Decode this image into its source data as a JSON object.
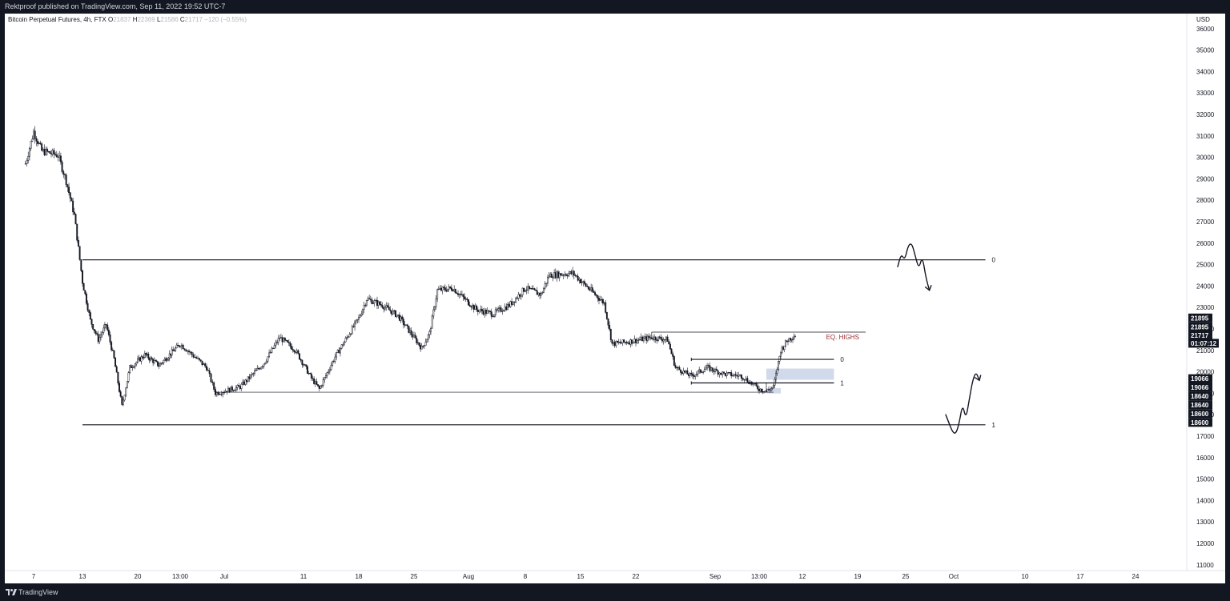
{
  "header": {
    "published": "Rektproof published on TradingView.com, Sep 11, 2022 19:52 UTC-7"
  },
  "legend": {
    "symbol": "Bitcoin Perpetual Futures, 4h, FTX",
    "o_label": "O",
    "o_value": "21837",
    "h_label": "H",
    "h_value": "22369",
    "l_label": "L",
    "l_value": "21586",
    "c_label": "C",
    "c_value": "21717",
    "change": "−120 (−0.55%)"
  },
  "footer": {
    "brand": "TradingView"
  },
  "chart_data": {
    "type": "candlestick",
    "currency": "USD",
    "timeframe": "4h",
    "ylim": [
      10600,
      36400
    ],
    "y_ticks": [
      11000,
      12000,
      13000,
      14000,
      15000,
      16000,
      17000,
      18000,
      19000,
      20000,
      21000,
      22000,
      23000,
      24000,
      25000,
      26000,
      27000,
      28000,
      29000,
      30000,
      31000,
      32000,
      33000,
      34000,
      35000,
      36000
    ],
    "x_ticks": [
      "7",
      "13",
      "20",
      "13:00",
      "Jul",
      "11",
      "18",
      "25",
      "Aug",
      "8",
      "15",
      "22",
      "Sep",
      "13:00",
      "12",
      "19",
      "25",
      "Oct",
      "10",
      "17",
      "24"
    ],
    "key_points": [
      {
        "date": "Jun 6",
        "price": 29700
      },
      {
        "date": "Jun 7",
        "price": 31200
      },
      {
        "date": "Jun 8",
        "price": 30300
      },
      {
        "date": "Jun 10",
        "price": 30100
      },
      {
        "date": "Jun 11",
        "price": 28900
      },
      {
        "date": "Jun 12",
        "price": 27300
      },
      {
        "date": "Jun 13",
        "price": 24200
      },
      {
        "date": "Jun 14",
        "price": 22400
      },
      {
        "date": "Jun 15",
        "price": 21500
      },
      {
        "date": "Jun 16",
        "price": 22200
      },
      {
        "date": "Jun 17",
        "price": 20600
      },
      {
        "date": "Jun 18",
        "price": 18400
      },
      {
        "date": "Jun 19",
        "price": 20200
      },
      {
        "date": "Jun 21",
        "price": 20800
      },
      {
        "date": "Jun 23",
        "price": 20300
      },
      {
        "date": "Jun 26",
        "price": 21300
      },
      {
        "date": "Jun 29",
        "price": 20200
      },
      {
        "date": "Jun 30",
        "price": 19000
      },
      {
        "date": "Jul 3",
        "price": 19300
      },
      {
        "date": "Jul 6",
        "price": 20400
      },
      {
        "date": "Jul 8",
        "price": 21600
      },
      {
        "date": "Jul 10",
        "price": 21000
      },
      {
        "date": "Jul 12",
        "price": 19700
      },
      {
        "date": "Jul 13",
        "price": 19200
      },
      {
        "date": "Jul 15",
        "price": 20700
      },
      {
        "date": "Jul 18",
        "price": 22500
      },
      {
        "date": "Jul 19",
        "price": 23400
      },
      {
        "date": "Jul 21",
        "price": 23100
      },
      {
        "date": "Jul 23",
        "price": 22600
      },
      {
        "date": "Jul 26",
        "price": 21100
      },
      {
        "date": "Jul 27",
        "price": 21800
      },
      {
        "date": "Jul 28",
        "price": 23800
      },
      {
        "date": "Jul 30",
        "price": 23900
      },
      {
        "date": "Aug 2",
        "price": 22900
      },
      {
        "date": "Aug 4",
        "price": 22700
      },
      {
        "date": "Aug 6",
        "price": 23100
      },
      {
        "date": "Aug 8",
        "price": 23900
      },
      {
        "date": "Aug 10",
        "price": 23600
      },
      {
        "date": "Aug 11",
        "price": 24500
      },
      {
        "date": "Aug 14",
        "price": 24600
      },
      {
        "date": "Aug 16",
        "price": 23900
      },
      {
        "date": "Aug 18",
        "price": 23200
      },
      {
        "date": "Aug 19",
        "price": 21300
      },
      {
        "date": "Aug 21",
        "price": 21400
      },
      {
        "date": "Aug 24",
        "price": 21600
      },
      {
        "date": "Aug 26",
        "price": 21500
      },
      {
        "date": "Aug 27",
        "price": 20200
      },
      {
        "date": "Aug 29",
        "price": 19800
      },
      {
        "date": "Aug 31",
        "price": 20200
      },
      {
        "date": "Sep 2",
        "price": 19900
      },
      {
        "date": "Sep 4",
        "price": 19800
      },
      {
        "date": "Sep 6",
        "price": 19200
      },
      {
        "date": "Sep 7",
        "price": 19100
      },
      {
        "date": "Sep 8",
        "price": 19300
      },
      {
        "date": "Sep 9",
        "price": 21000
      },
      {
        "date": "Sep 10",
        "price": 21500
      },
      {
        "date": "Sep 11",
        "price": 21717
      }
    ],
    "levels": [
      {
        "price": 25220,
        "label": "0",
        "from": "Jun 13",
        "to": "Oct 5"
      },
      {
        "price": 17530,
        "label": "1",
        "from": "Jun 13",
        "to": "Oct 5"
      },
      {
        "price": 21850,
        "label": "",
        "from": "Aug 24",
        "to": "Sep 20"
      },
      {
        "price": 20580,
        "label": "0",
        "from": "Aug 29",
        "to": "Sep 16"
      },
      {
        "price": 19480,
        "label": "1",
        "from": "Aug 29",
        "to": "Sep 16"
      },
      {
        "price": 19050,
        "label": "",
        "from": "Jun 30",
        "to": "Sep 8"
      }
    ],
    "zones": [
      {
        "from": "Sep 7",
        "to": "Sep 16",
        "low": 19630,
        "high": 20150
      },
      {
        "from": "Sep 7",
        "to": "Sep 9",
        "low": 18990,
        "high": 19240
      }
    ],
    "annotations": [
      {
        "text": "EQ. HIGHS",
        "date": "Sep 15",
        "price": 21630
      }
    ],
    "projections": [
      {
        "date": "Sep 24",
        "prices": [
          24900,
          25500,
          25200,
          25900,
          26000,
          25400,
          24800,
          25400,
          24400,
          23800
        ]
      },
      {
        "date": "Sep 30",
        "prices": [
          18000,
          17600,
          17200,
          17100,
          17600,
          18500,
          17800,
          18700,
          19600,
          20000,
          19600
        ]
      }
    ],
    "price_tags": [
      {
        "text": "21895",
        "price": 22510,
        "color": "#131722"
      },
      {
        "text": "21895",
        "price": 22100,
        "color": "#131722"
      },
      {
        "text": "21717",
        "price": 21710,
        "color": "#131722"
      },
      {
        "text": "01:07:12",
        "price": 21330,
        "color": "#131722"
      },
      {
        "text": "19066",
        "price": 19680,
        "color": "#131722"
      },
      {
        "text": "19066",
        "price": 19280,
        "color": "#131722"
      },
      {
        "text": "18640",
        "price": 18870,
        "color": "#131722"
      },
      {
        "text": "18640",
        "price": 18460,
        "color": "#131722"
      },
      {
        "text": "18600",
        "price": 18050,
        "color": "#131722"
      },
      {
        "text": "18600",
        "price": 17640,
        "color": "#131722"
      }
    ]
  }
}
